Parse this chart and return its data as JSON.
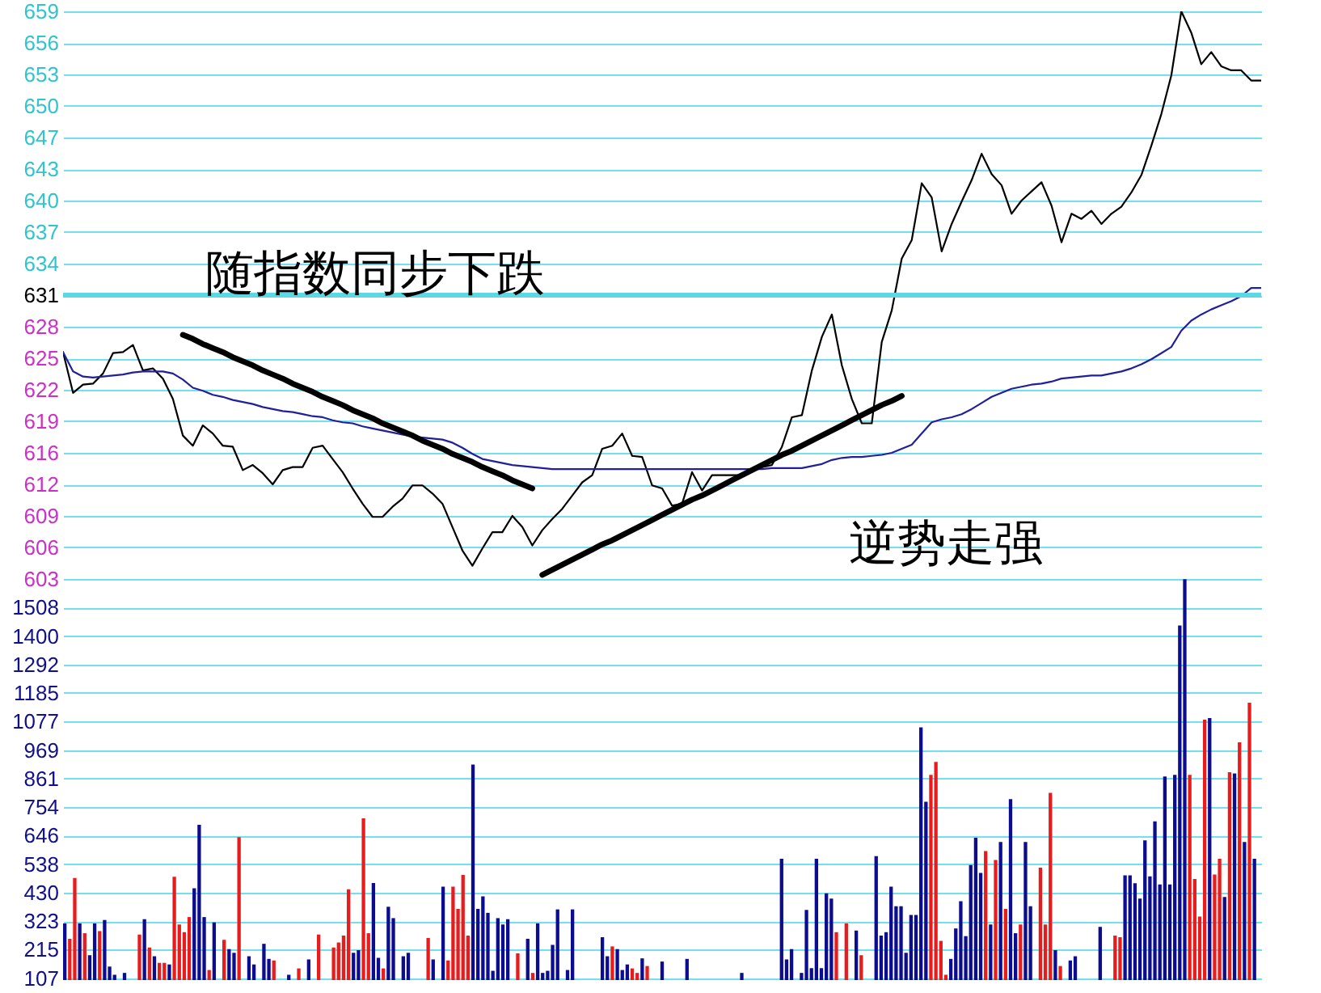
{
  "chart_data": [
    {
      "type": "line",
      "categories": [
        null,
        null,
        null,
        null,
        null,
        null,
        null,
        null,
        null,
        null,
        null,
        null,
        null,
        null,
        null,
        null,
        null,
        null,
        null,
        null,
        null,
        null,
        null,
        null,
        null,
        null,
        null,
        null,
        null,
        null,
        null,
        null,
        null,
        null,
        null,
        null,
        null,
        null,
        null,
        null,
        null,
        null,
        null,
        null,
        null,
        null,
        null,
        null,
        null,
        null,
        null,
        null,
        null,
        null,
        null,
        null,
        null,
        null,
        null,
        null,
        null,
        null,
        null,
        null,
        null,
        null,
        null,
        null,
        null,
        null,
        null,
        null,
        null,
        null,
        null,
        null,
        null,
        null,
        null,
        null,
        null,
        null,
        null,
        null,
        null,
        null,
        null,
        null,
        null,
        null,
        null,
        null,
        null,
        null,
        null,
        null,
        null,
        null,
        null,
        null,
        null,
        null,
        null,
        null,
        null,
        null,
        null,
        null,
        null,
        null,
        null,
        null,
        null,
        null,
        null,
        null,
        null,
        null,
        null,
        null,
        null
      ],
      "series": [
        {
          "color": "#000000",
          "values": [
            625.4,
            621.4,
            622.2,
            622.3,
            623.3,
            625.3,
            625.4,
            626.1,
            623.6,
            623.8,
            622.8,
            620.8,
            617.2,
            616.2,
            618.2,
            617.4,
            616.2,
            616.1,
            613.8,
            614.3,
            613.5,
            612.4,
            613.8,
            614.1,
            614.1,
            616.0,
            616.2,
            614.9,
            613.6,
            612.0,
            610.5,
            609.2,
            609.2,
            610.2,
            611.0,
            612.3,
            612.3,
            611.5,
            610.5,
            608.2,
            605.9,
            604.4,
            606.1,
            607.7,
            607.7,
            609.3,
            608.2,
            606.4,
            607.9,
            609.0,
            610.0,
            611.3,
            612.6,
            613.3,
            615.9,
            616.2,
            617.4,
            615.2,
            615.1,
            612.3,
            612.0,
            610.3,
            610.5,
            613.6,
            611.8,
            613.3,
            613.3,
            613.3,
            613.3,
            613.8,
            614.1,
            614.3,
            616.1,
            619.0,
            619.2,
            623.6,
            626.9,
            629.1,
            624.1,
            620.8,
            618.4,
            618.4,
            626.4,
            629.5,
            634.6,
            636.4,
            642.0,
            640.6,
            635.3,
            638.0,
            640.2,
            642.3,
            644.9,
            642.9,
            641.8,
            639.0,
            640.3,
            641.2,
            642.1,
            639.8,
            636.2,
            639.0,
            638.5,
            639.3,
            638.0,
            639.0,
            639.7,
            641.1,
            642.8,
            645.7,
            648.8,
            652.6,
            658.9,
            656.8,
            653.7,
            654.9,
            653.5,
            653.1,
            653.1,
            652.1,
            652.1
          ]
        },
        {
          "color": "#20209a",
          "values": [
            625.4,
            623.5,
            623.0,
            622.9,
            623.0,
            623.1,
            623.2,
            623.4,
            623.5,
            623.5,
            623.5,
            623.3,
            622.7,
            621.9,
            621.6,
            621.2,
            621.0,
            620.7,
            620.5,
            620.3,
            620.0,
            619.8,
            619.6,
            619.5,
            619.3,
            619.1,
            619.0,
            618.7,
            618.5,
            618.4,
            618.1,
            617.9,
            617.7,
            617.5,
            617.3,
            617.1,
            617.0,
            616.9,
            616.8,
            616.5,
            616.0,
            615.4,
            614.9,
            614.7,
            614.5,
            614.3,
            614.2,
            614.1,
            614.0,
            613.9,
            613.9,
            613.9,
            613.9,
            613.9,
            613.9,
            613.9,
            613.9,
            613.9,
            613.9,
            613.9,
            613.9,
            613.9,
            613.9,
            613.9,
            613.9,
            613.9,
            613.9,
            613.9,
            613.9,
            613.9,
            613.9,
            614.0,
            614.0,
            614.0,
            614.0,
            614.2,
            614.4,
            614.8,
            615.0,
            615.1,
            615.1,
            615.2,
            615.3,
            615.5,
            615.9,
            616.3,
            617.4,
            618.5,
            618.8,
            619.0,
            619.3,
            619.8,
            620.4,
            621.0,
            621.4,
            621.8,
            622.0,
            622.2,
            622.3,
            622.5,
            622.8,
            622.9,
            623.0,
            623.1,
            623.1,
            623.3,
            623.5,
            623.8,
            624.2,
            624.7,
            625.3,
            625.9,
            627.5,
            628.5,
            629.1,
            629.6,
            630.0,
            630.4,
            630.9,
            631.7,
            631.7
          ]
        },
        {
          "type": "line",
          "color": "#000000",
          "values": [
            null,
            null,
            null,
            null,
            null,
            null,
            null,
            null,
            null,
            null,
            null,
            null,
            627.1,
            626.7,
            626.2,
            625.8,
            625.4,
            624.9,
            624.5,
            624.1,
            623.6,
            623.2,
            622.8,
            622.3,
            621.9,
            621.5,
            621.0,
            620.6,
            620.2,
            619.7,
            619.3,
            618.9,
            618.4,
            618.0,
            617.6,
            617.2,
            616.7,
            616.3,
            615.9,
            615.4,
            615.0,
            614.6,
            614.1,
            613.7,
            613.3,
            612.8,
            612.4,
            612.0,
            null,
            null,
            null,
            null,
            null,
            null,
            null,
            null,
            null,
            null,
            null,
            null,
            null,
            null,
            null,
            null,
            null,
            null,
            null,
            null,
            null,
            null,
            null,
            null,
            null,
            null,
            null,
            null,
            null,
            null,
            null,
            null,
            null,
            null,
            null,
            null,
            null,
            null,
            null,
            null,
            null,
            null,
            null,
            null,
            null,
            null,
            null,
            null,
            null,
            null,
            null,
            null,
            null,
            null,
            null,
            null,
            null,
            null,
            null,
            null,
            null,
            null,
            null,
            null,
            null,
            null,
            null,
            null,
            null,
            null,
            null,
            null,
            null
          ]
        },
        {
          "type": "line",
          "color": "#000000",
          "values": [
            null,
            null,
            null,
            null,
            null,
            null,
            null,
            null,
            null,
            null,
            null,
            null,
            null,
            null,
            null,
            null,
            null,
            null,
            null,
            null,
            null,
            null,
            null,
            null,
            null,
            null,
            null,
            null,
            null,
            null,
            null,
            null,
            null,
            null,
            null,
            null,
            null,
            null,
            null,
            null,
            null,
            null,
            null,
            null,
            null,
            null,
            null,
            null,
            603.5,
            604.0,
            604.5,
            605.0,
            605.5,
            606.0,
            606.5,
            606.9,
            607.4,
            607.9,
            608.4,
            608.9,
            609.4,
            609.9,
            610.4,
            610.9,
            611.3,
            611.8,
            612.3,
            612.8,
            613.3,
            613.8,
            614.3,
            614.8,
            615.3,
            615.7,
            616.2,
            616.7,
            617.2,
            617.7,
            618.2,
            618.7,
            619.2,
            619.7,
            620.2,
            620.6,
            621.1,
            null,
            null,
            null,
            null,
            null,
            null,
            null,
            null,
            null,
            null,
            null,
            null,
            null,
            null,
            null,
            null,
            null,
            null,
            null,
            null,
            null,
            null,
            null,
            null,
            null,
            null,
            null,
            null,
            null,
            null,
            null,
            null,
            null,
            null,
            null,
            null
          ]
        }
      ],
      "ylim": [
        603.1,
        658.9
      ],
      "yticks": [
        {
          "value": 603.1,
          "label": "603"
        },
        {
          "value": 606.2,
          "label": "606"
        },
        {
          "value": 609.3,
          "label": "609"
        },
        {
          "value": 612.4,
          "label": "612"
        },
        {
          "value": 615.5,
          "label": "616"
        },
        {
          "value": 618.6,
          "label": "619"
        },
        {
          "value": 621.7,
          "label": "622"
        },
        {
          "value": 624.8,
          "label": "625"
        },
        {
          "value": 627.9,
          "label": "628"
        },
        631,
        {
          "value": 634.1,
          "label": "634"
        },
        {
          "value": 637.2,
          "label": "637"
        },
        {
          "value": 640.3,
          "label": "640"
        },
        {
          "value": 643.4,
          "label": "643"
        },
        {
          "value": 646.5,
          "label": "647"
        },
        {
          "value": 649.6,
          "label": "650"
        },
        {
          "value": 652.7,
          "label": "653"
        },
        {
          "value": 655.8,
          "label": "656"
        },
        {
          "value": 658.9,
          "label": "659"
        }
      ],
      "grid": "y",
      "tick_labels": "y",
      "ref_lines": [
        {
          "axis": "y",
          "value": 631,
          "color": "#5cd8e4"
        }
      ],
      "annotations": [
        "随指数同步下跌",
        "逆势走强"
      ]
    },
    {
      "type": "bar",
      "categories": [
        null,
        null,
        null,
        null,
        null,
        null,
        null,
        null,
        null,
        null,
        null,
        null,
        null,
        null,
        null,
        null,
        null,
        null,
        null,
        null,
        null,
        null,
        null,
        null,
        null,
        null,
        null,
        null,
        null,
        null,
        null,
        null,
        null,
        null,
        null,
        null,
        null,
        null,
        null,
        null,
        null,
        null,
        null,
        null,
        null,
        null,
        null,
        null,
        null,
        null,
        null,
        null,
        null,
        null,
        null,
        null,
        null,
        null,
        null,
        null,
        null,
        null,
        null,
        null,
        null,
        null,
        null,
        null,
        null,
        null,
        null,
        null,
        null,
        null,
        null,
        null,
        null,
        null,
        null,
        null,
        null,
        null,
        null,
        null,
        null,
        null,
        null,
        null,
        null,
        null,
        null,
        null,
        null,
        null,
        null,
        null,
        null,
        null,
        null,
        null,
        null,
        null,
        null,
        null,
        null,
        null,
        null,
        null,
        null,
        null,
        null,
        null,
        null,
        null,
        null,
        null,
        null,
        null,
        null,
        null,
        null,
        null,
        null,
        null,
        null,
        null,
        null,
        null,
        null,
        null,
        null,
        null,
        null,
        null,
        null,
        null,
        null,
        null,
        null,
        null,
        null,
        null,
        null,
        null,
        null,
        null,
        null,
        null,
        null,
        null,
        null,
        null,
        null,
        null,
        null,
        null,
        null,
        null,
        null,
        null,
        null,
        null,
        null,
        null,
        null,
        null,
        null,
        null,
        null,
        null,
        null,
        null,
        null,
        null,
        null,
        null,
        null,
        null,
        null,
        null,
        null,
        null,
        null,
        null,
        null,
        null,
        null,
        null,
        null,
        null,
        null,
        null,
        null,
        null,
        null,
        null,
        null,
        null,
        null,
        null,
        null,
        null,
        null,
        null,
        null,
        null,
        null,
        null,
        null,
        null,
        null,
        null,
        null,
        null,
        null,
        null,
        null,
        null,
        null,
        null,
        null,
        null,
        null,
        null,
        null,
        null,
        null,
        null,
        null,
        null,
        null,
        null,
        null,
        null,
        null,
        null,
        null,
        null,
        null,
        null,
        null
      ],
      "series": [
        {
          "color": "#e81c1c",
          "values": [
            null,
            256,
            486,
            null,
            277,
            null,
            null,
            285,
            null,
            null,
            null,
            null,
            null,
            null,
            null,
            272,
            null,
            223,
            null,
            165,
            165,
            null,
            490,
            310,
            281,
            338,
            null,
            null,
            null,
            138,
            null,
            null,
            252,
            null,
            null,
            640,
            null,
            null,
            null,
            null,
            null,
            null,
            174,
            null,
            null,
            null,
            null,
            144,
            null,
            null,
            null,
            272,
            null,
            null,
            223,
            242,
            268,
            443,
            null,
            null,
            711,
            277,
            null,
            null,
            144,
            null,
            null,
            null,
            null,
            null,
            null,
            null,
            null,
            259,
            null,
            null,
            null,
            174,
            453,
            369,
            497,
            268,
            null,
            null,
            null,
            null,
            null,
            null,
            null,
            null,
            null,
            201,
            null,
            null,
            127,
            null,
            null,
            null,
            null,
            null,
            null,
            null,
            null,
            null,
            null,
            null,
            null,
            null,
            null,
            null,
            227,
            null,
            null,
            null,
            144,
            127,
            null,
            153,
            null,
            null,
            null,
            null,
            null,
            null,
            null,
            null,
            null,
            null,
            null,
            null,
            null,
            null,
            null,
            null,
            null,
            null,
            null,
            null,
            null,
            null,
            null,
            null,
            null,
            null,
            null,
            null,
            null,
            null,
            null,
            null,
            null,
            null,
            null,
            null,
            null,
            281,
            null,
            314,
            null,
            null,
            194,
            null,
            null,
            null,
            null,
            null,
            null,
            null,
            null,
            null,
            null,
            null,
            null,
            null,
            875,
            924,
            248,
            120,
            null,
            null,
            null,
            null,
            null,
            null,
            null,
            587,
            null,
            554,
            null,
            369,
            null,
            null,
            310,
            null,
            null,
            null,
            525,
            310,
            807,
            null,
            153,
            null,
            null,
            null,
            null,
            null,
            null,
            null,
            null,
            null,
            null,
            268,
            262,
            null,
            null,
            null,
            null,
            null,
            null,
            null,
            null,
            null,
            null,
            null,
            null,
            null,
            875,
            482,
            340,
            1084,
            null,
            499,
            558,
            null,
            885,
            null,
            998,
            null,
            1148,
            null,
            null
          ]
        },
        {
          "color": "#0c0c90",
          "values": [
            314,
            null,
            null,
            314,
            null,
            194,
            314,
            null,
            327,
            151,
            120,
            null,
            127,
            null,
            null,
            null,
            330,
            null,
            190,
            null,
            null,
            159,
            null,
            null,
            null,
            null,
            447,
            687,
            338,
            null,
            318,
            null,
            null,
            217,
            203,
            null,
            null,
            190,
            159,
            null,
            237,
            180,
            null,
            null,
            null,
            120,
            null,
            null,
            null,
            178,
            null,
            null,
            null,
            null,
            null,
            null,
            null,
            null,
            203,
            213,
            null,
            null,
            467,
            184,
            null,
            377,
            334,
            null,
            190,
            203,
            null,
            null,
            null,
            null,
            178,
            null,
            453,
            null,
            null,
            null,
            null,
            null,
            914,
            369,
            416,
            354,
            135,
            334,
            310,
            330,
            null,
            null,
            null,
            256,
            null,
            314,
            127,
            135,
            233,
            367,
            null,
            138,
            367,
            null,
            null,
            null,
            null,
            null,
            262,
            190,
            null,
            217,
            138,
            159,
            null,
            null,
            182,
            null,
            null,
            null,
            170,
            null,
            null,
            null,
            null,
            180,
            null,
            null,
            null,
            null,
            null,
            null,
            null,
            null,
            null,
            null,
            127,
            null,
            null,
            null,
            null,
            null,
            null,
            null,
            558,
            178,
            217,
            null,
            127,
            365,
            145,
            558,
            145,
            428,
            408,
            null,
            null,
            null,
            null,
            287,
            null,
            null,
            null,
            568,
            268,
            281,
            453,
            379,
            379,
            203,
            346,
            346,
            1055,
            774,
            null,
            null,
            null,
            null,
            180,
            295,
            398,
            266,
            535,
            638,
            505,
            null,
            310,
            null,
            622,
            null,
            784,
            277,
            null,
            622,
            379,
            null,
            null,
            null,
            null,
            213,
            null,
            null,
            174,
            190,
            null,
            null,
            null,
            null,
            301,
            null,
            null,
            null,
            null,
            496,
            496,
            466,
            408,
            628,
            492,
            700,
            461,
            869,
            461,
            875,
            1440,
            1615,
            null,
            null,
            null,
            null,
            1090,
            null,
            null,
            414,
            null,
            881,
            null,
            622,
            null,
            558,
            null
          ]
        }
      ],
      "ylim": [
        100,
        1615.5
      ],
      "yticks": [
        107,
        215,
        323,
        430,
        538,
        646,
        754,
        861,
        969,
        1077,
        1185,
        1292,
        1400,
        1508
      ],
      "grid": "y",
      "tick_labels": "y"
    }
  ]
}
